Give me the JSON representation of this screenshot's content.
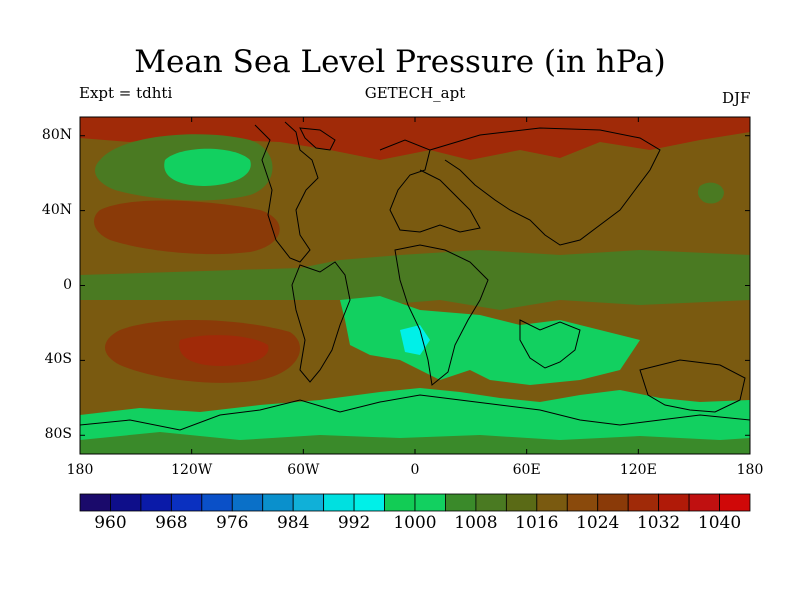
{
  "title": "Mean Sea Level Pressure (in hPa)",
  "experiment_label": "Expt = tdhti",
  "dataset_label": "GETECH_apt",
  "season_label": "DJF",
  "axes": {
    "lat_ticks": [
      "80N",
      "40N",
      "0",
      "40S",
      "80S"
    ],
    "lat_values": [
      80,
      40,
      0,
      -40,
      -80
    ],
    "lon_ticks": [
      "180",
      "120W",
      "60W",
      "0",
      "60E",
      "120E",
      "180"
    ],
    "lon_values": [
      -180,
      -120,
      -60,
      0,
      60,
      120,
      180
    ]
  },
  "colorbar": {
    "labels": [
      "960",
      "968",
      "976",
      "984",
      "992",
      "1000",
      "1008",
      "1016",
      "1024",
      "1032",
      "1040"
    ],
    "label_values": [
      960,
      968,
      976,
      984,
      992,
      1000,
      1008,
      1016,
      1024,
      1032,
      1040
    ],
    "colors": [
      "#1a0a6b",
      "#0e0e8a",
      "#0a1aa8",
      "#0a30c0",
      "#0a50c8",
      "#0a70c8",
      "#0a90cc",
      "#10b0d8",
      "#00e0e0",
      "#00f0e8",
      "#12cc55",
      "#12d060",
      "#3a8a2a",
      "#4a7a22",
      "#5a6a16",
      "#7a5a10",
      "#8a4a0c",
      "#8a3a08",
      "#a02a08",
      "#b01a08",
      "#c01010",
      "#d00808"
    ],
    "min": 956,
    "step": 4
  },
  "map_data": {
    "type": "filled-contour-map",
    "variable": "Mean Sea Level Pressure",
    "units": "hPa",
    "background_level": 1016,
    "regions": [
      {
        "name": "north-polar-high",
        "level": 1028
      },
      {
        "name": "north-pacific-low",
        "level": 1008
      },
      {
        "name": "north-pacific-low-core",
        "level": 1000
      },
      {
        "name": "north-pacific-subtropical-high",
        "level": 1024
      },
      {
        "name": "southeast-pacific-high",
        "level": 1024
      },
      {
        "name": "southeast-pacific-high-core",
        "level": 1028
      },
      {
        "name": "tropical-trough",
        "level": 1008
      },
      {
        "name": "southern-continent-low",
        "level": 1000
      },
      {
        "name": "southern-continent-low-core",
        "level": 992
      },
      {
        "name": "southern-ocean-trough",
        "level": 1000
      },
      {
        "name": "antarctic-band",
        "level": 1004
      },
      {
        "name": "northwest-pacific-low",
        "level": 1008
      }
    ]
  }
}
